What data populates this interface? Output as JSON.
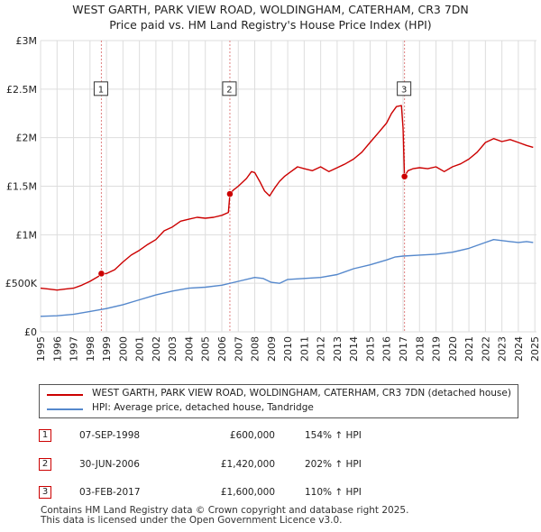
{
  "title_line1": "WEST GARTH, PARK VIEW ROAD, WOLDINGHAM, CATERHAM, CR3 7DN",
  "title_line2": "Price paid vs. HM Land Registry's House Price Index (HPI)",
  "colors": {
    "property": "#cc0000",
    "hpi": "#5588cc",
    "grid": "#dddddd",
    "marker_line": "#e08080"
  },
  "legend": {
    "property_label": "WEST GARTH, PARK VIEW ROAD, WOLDINGHAM, CATERHAM, CR3 7DN (detached house)",
    "hpi_label": "HPI: Average price, detached house, Tandridge"
  },
  "transactions": [
    {
      "id": "1",
      "date": "07-SEP-1998",
      "price": "£600,000",
      "hpi": "154% ↑ HPI"
    },
    {
      "id": "2",
      "date": "30-JUN-2006",
      "price": "£1,420,000",
      "hpi": "202% ↑ HPI"
    },
    {
      "id": "3",
      "date": "03-FEB-2017",
      "price": "£1,600,000",
      "hpi": "110% ↑ HPI"
    }
  ],
  "footer_line1": "Contains HM Land Registry data © Crown copyright and database right 2025.",
  "footer_line2": "This data is licensed under the Open Government Licence v3.0.",
  "chart_data": {
    "type": "line",
    "title": "WEST GARTH, PARK VIEW ROAD, WOLDINGHAM, CATERHAM, CR3 7DN",
    "subtitle": "Price paid vs. HM Land Registry's House Price Index (HPI)",
    "xlim": [
      1995.0,
      2025.1
    ],
    "ylim": [
      0,
      3000000
    ],
    "x_ticks": [
      1995,
      1996,
      1997,
      1998,
      1999,
      2000,
      2001,
      2002,
      2003,
      2004,
      2005,
      2006,
      2007,
      2008,
      2009,
      2010,
      2011,
      2012,
      2013,
      2014,
      2015,
      2016,
      2017,
      2018,
      2019,
      2020,
      2021,
      2022,
      2023,
      2024,
      2025
    ],
    "y_ticks": [
      {
        "value": 0,
        "label": "£0"
      },
      {
        "value": 500000,
        "label": "£500K"
      },
      {
        "value": 1000000,
        "label": "£1M"
      },
      {
        "value": 1500000,
        "label": "£1.5M"
      },
      {
        "value": 2000000,
        "label": "£2M"
      },
      {
        "value": 2500000,
        "label": "£2.5M"
      },
      {
        "value": 3000000,
        "label": "£3M"
      }
    ],
    "grid": true,
    "sales": [
      {
        "label": "1",
        "x": 1998.69,
        "y": 600000
      },
      {
        "label": "2",
        "x": 2006.49,
        "y": 1420000
      },
      {
        "label": "3",
        "x": 2017.09,
        "y": 1600000
      }
    ],
    "series": [
      {
        "name": "WEST GARTH, PARK VIEW ROAD, WOLDINGHAM, CATERHAM, CR3 7DN (detached house)",
        "color": "#cc0000",
        "x": [
          1995.0,
          1995.5,
          1996.0,
          1996.5,
          1997.0,
          1997.5,
          1998.0,
          1998.5,
          1998.69,
          1999.0,
          1999.5,
          2000.0,
          2000.5,
          2001.0,
          2001.5,
          2002.0,
          2002.5,
          2003.0,
          2003.5,
          2004.0,
          2004.5,
          2005.0,
          2005.5,
          2006.0,
          2006.4,
          2006.49,
          2006.7,
          2007.0,
          2007.5,
          2007.8,
          2008.0,
          2008.3,
          2008.6,
          2008.9,
          2009.2,
          2009.5,
          2009.8,
          2010.2,
          2010.6,
          2011.0,
          2011.5,
          2012.0,
          2012.5,
          2013.0,
          2013.5,
          2014.0,
          2014.5,
          2015.0,
          2015.5,
          2016.0,
          2016.3,
          2016.6,
          2016.9,
          2017.0,
          2017.09,
          2017.3,
          2017.6,
          2018.0,
          2018.5,
          2019.0,
          2019.5,
          2020.0,
          2020.5,
          2021.0,
          2021.5,
          2022.0,
          2022.5,
          2023.0,
          2023.5,
          2024.0,
          2024.5,
          2024.9
        ],
        "y": [
          450000,
          440000,
          430000,
          440000,
          450000,
          480000,
          520000,
          570000,
          600000,
          600000,
          640000,
          720000,
          790000,
          840000,
          900000,
          950000,
          1040000,
          1080000,
          1140000,
          1160000,
          1180000,
          1170000,
          1180000,
          1200000,
          1230000,
          1420000,
          1460000,
          1500000,
          1580000,
          1650000,
          1640000,
          1550000,
          1450000,
          1400000,
          1480000,
          1550000,
          1600000,
          1650000,
          1700000,
          1680000,
          1660000,
          1700000,
          1650000,
          1690000,
          1730000,
          1780000,
          1850000,
          1950000,
          2050000,
          2150000,
          2250000,
          2320000,
          2330000,
          2100000,
          1600000,
          1660000,
          1680000,
          1690000,
          1680000,
          1700000,
          1650000,
          1700000,
          1730000,
          1780000,
          1850000,
          1950000,
          1990000,
          1960000,
          1980000,
          1950000,
          1920000,
          1900000
        ]
      },
      {
        "name": "HPI: Average price, detached house, Tandridge",
        "color": "#5588cc",
        "x": [
          1995.0,
          1996.0,
          1997.0,
          1998.0,
          1999.0,
          2000.0,
          2001.0,
          2002.0,
          2003.0,
          2004.0,
          2005.0,
          2006.0,
          2007.0,
          2008.0,
          2008.5,
          2009.0,
          2009.5,
          2010.0,
          2011.0,
          2012.0,
          2013.0,
          2014.0,
          2015.0,
          2016.0,
          2016.5,
          2017.0,
          2018.0,
          2019.0,
          2020.0,
          2021.0,
          2022.0,
          2022.5,
          2023.0,
          2023.5,
          2024.0,
          2024.5,
          2024.9
        ],
        "y": [
          160000,
          165000,
          180000,
          210000,
          240000,
          280000,
          330000,
          380000,
          420000,
          450000,
          460000,
          480000,
          520000,
          560000,
          550000,
          510000,
          500000,
          540000,
          550000,
          560000,
          590000,
          650000,
          690000,
          740000,
          770000,
          780000,
          790000,
          800000,
          820000,
          860000,
          920000,
          950000,
          940000,
          930000,
          920000,
          930000,
          920000
        ]
      }
    ]
  }
}
